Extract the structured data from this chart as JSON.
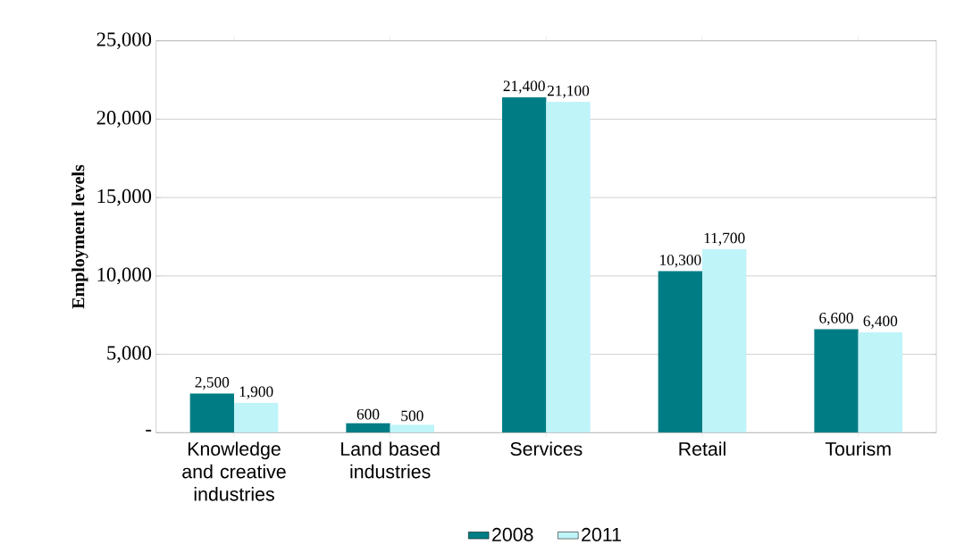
{
  "chart_data": {
    "type": "bar",
    "ylabel": "Employment levels",
    "categories": [
      "Knowledge and creative industries",
      "Land based industries",
      "Services",
      "Retail",
      "Tourism"
    ],
    "series": [
      {
        "name": "2008",
        "color": "#007d84",
        "values": [
          2500,
          600,
          21400,
          10300,
          6600
        ],
        "value_labels": [
          "2,500",
          "600",
          "21,400",
          "10,300",
          "6,600"
        ]
      },
      {
        "name": "2011",
        "color": "#bff4f9",
        "values": [
          1900,
          500,
          21100,
          11700,
          6400
        ],
        "value_labels": [
          "1,900",
          "500",
          "21,100",
          "11,700",
          "6,400"
        ]
      }
    ],
    "ylim": [
      0,
      25000
    ],
    "yticks": [
      {
        "value": 0,
        "label": "-"
      },
      {
        "value": 5000,
        "label": "5,000"
      },
      {
        "value": 10000,
        "label": "10,000"
      },
      {
        "value": 15000,
        "label": "15,000"
      },
      {
        "value": 20000,
        "label": "20,000"
      },
      {
        "value": 25000,
        "label": "25,000"
      }
    ],
    "grid": "y",
    "legend": "bottom"
  }
}
